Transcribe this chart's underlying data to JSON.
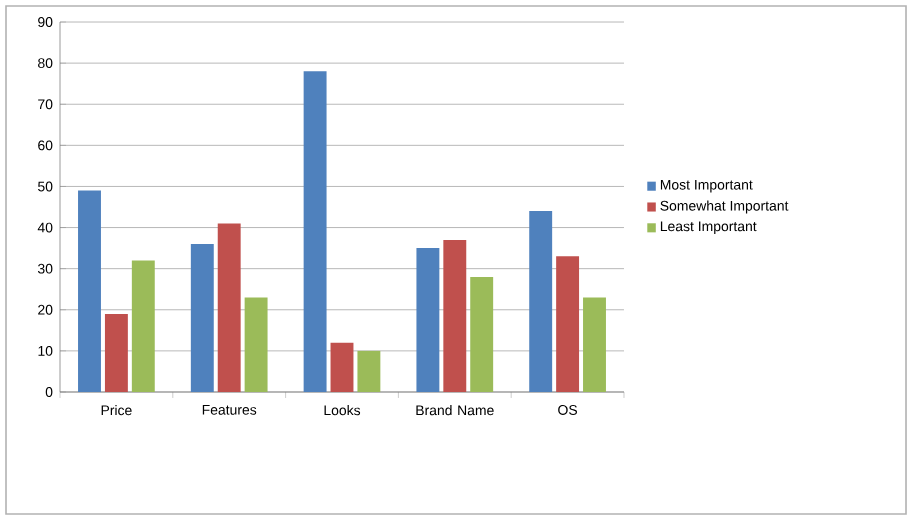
{
  "chart_data": {
    "type": "bar",
    "categories": [
      "Price",
      "Features",
      "Looks",
      "Brand Name",
      "OS"
    ],
    "series": [
      {
        "name": "Most  Important",
        "color": "#4f81bd",
        "values": [
          49,
          36,
          78,
          35,
          44
        ]
      },
      {
        "name": "Somewhat  Important",
        "color": "#c0504d",
        "values": [
          19,
          41,
          12,
          37,
          33
        ]
      },
      {
        "name": "Least  Important",
        "color": "#9bbb59",
        "values": [
          32,
          23,
          10,
          28,
          23
        ]
      }
    ],
    "ylim": [
      0,
      90
    ],
    "yticks": [
      0,
      10,
      20,
      30,
      40,
      50,
      60,
      70,
      80,
      90
    ],
    "grid": "y",
    "legend": "right"
  }
}
